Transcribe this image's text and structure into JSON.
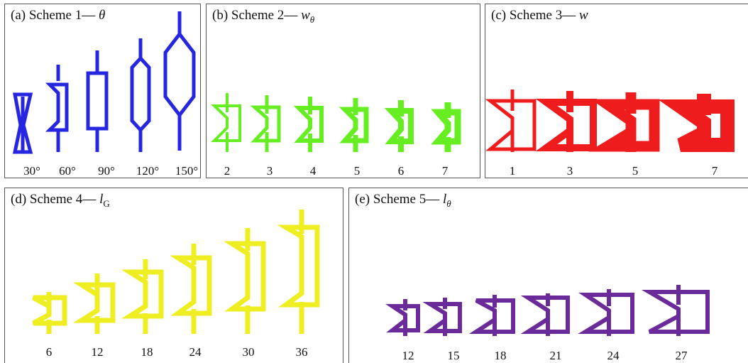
{
  "colors": {
    "scheme1": "#2626e0",
    "scheme2": "#66ee22",
    "scheme3": "#ee1c1c",
    "scheme4": "#eeee22",
    "scheme5": "#6a2a9a",
    "border": "#555555"
  },
  "panels": [
    {
      "id": "a",
      "title_prefix": "(a) Scheme 1",
      "separator": "—",
      "symbol": "θ",
      "subscript": "",
      "labels": [
        "30°",
        "60°",
        "90°",
        "120°",
        "150°"
      ]
    },
    {
      "id": "b",
      "title_prefix": "(b) Scheme 2",
      "separator": "—",
      "symbol": "w",
      "subscript": "θ",
      "labels": [
        "2",
        "3",
        "4",
        "5",
        "6",
        "7"
      ]
    },
    {
      "id": "c",
      "title_prefix": "(c) Scheme 3",
      "separator": "—",
      "symbol": "w",
      "subscript": "",
      "labels": [
        "1",
        "3",
        "5",
        "7"
      ]
    },
    {
      "id": "d",
      "title_prefix": "(d) Scheme 4",
      "separator": "—",
      "symbol": "l",
      "subscript": "G",
      "labels": [
        "6",
        "12",
        "18",
        "24",
        "30",
        "36"
      ]
    },
    {
      "id": "e",
      "title_prefix": "(e) Scheme 5",
      "separator": "—",
      "symbol": "l",
      "subscript": "θ",
      "labels": [
        "12",
        "15",
        "18",
        "21",
        "24",
        "27"
      ]
    }
  ]
}
